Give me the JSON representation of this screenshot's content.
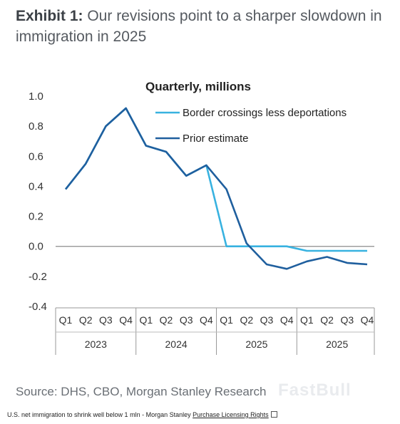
{
  "header": {
    "title_bold": "Exhibit 1:",
    "title_rest": " Our revisions point to a sharper slowdown in immigration in 2025"
  },
  "footer": {
    "source": "Source: DHS, CBO, Morgan Stanley Research",
    "watermark": "FastBull",
    "caption": "U.S. net immigration to shrink well below 1 mln - Morgan Stanley",
    "caption_link": "Purchase Licensing Rights"
  },
  "chart_data": {
    "type": "line",
    "subtitle": "Quarterly, millions",
    "quarters": [
      "Q1",
      "Q2",
      "Q3",
      "Q4",
      "Q1",
      "Q2",
      "Q3",
      "Q4",
      "Q1",
      "Q2",
      "Q3",
      "Q4",
      "Q1",
      "Q2",
      "Q3",
      "Q4"
    ],
    "years": [
      "2023",
      "2024",
      "2025",
      "2025"
    ],
    "ylim": [
      -0.4,
      1.0
    ],
    "yticks": [
      "1.0",
      "0.8",
      "0.6",
      "0.4",
      "0.2",
      "0.0",
      "-0.2",
      "-0.4"
    ],
    "series": [
      {
        "name": "Border crossings less deportations",
        "color": "#38b2e0",
        "values": [
          0.38,
          0.55,
          0.8,
          0.92,
          0.67,
          0.63,
          0.47,
          0.54,
          0.0,
          0.0,
          0.0,
          0.0,
          -0.03,
          -0.03,
          -0.03,
          -0.03
        ]
      },
      {
        "name": "Prior estimate",
        "color": "#1f5f9e",
        "values": [
          0.38,
          0.55,
          0.8,
          0.92,
          0.67,
          0.63,
          0.47,
          0.54,
          0.38,
          0.02,
          -0.12,
          -0.15,
          -0.1,
          -0.07,
          -0.11,
          -0.12
        ]
      }
    ],
    "legend": "top-right",
    "grid": false
  }
}
